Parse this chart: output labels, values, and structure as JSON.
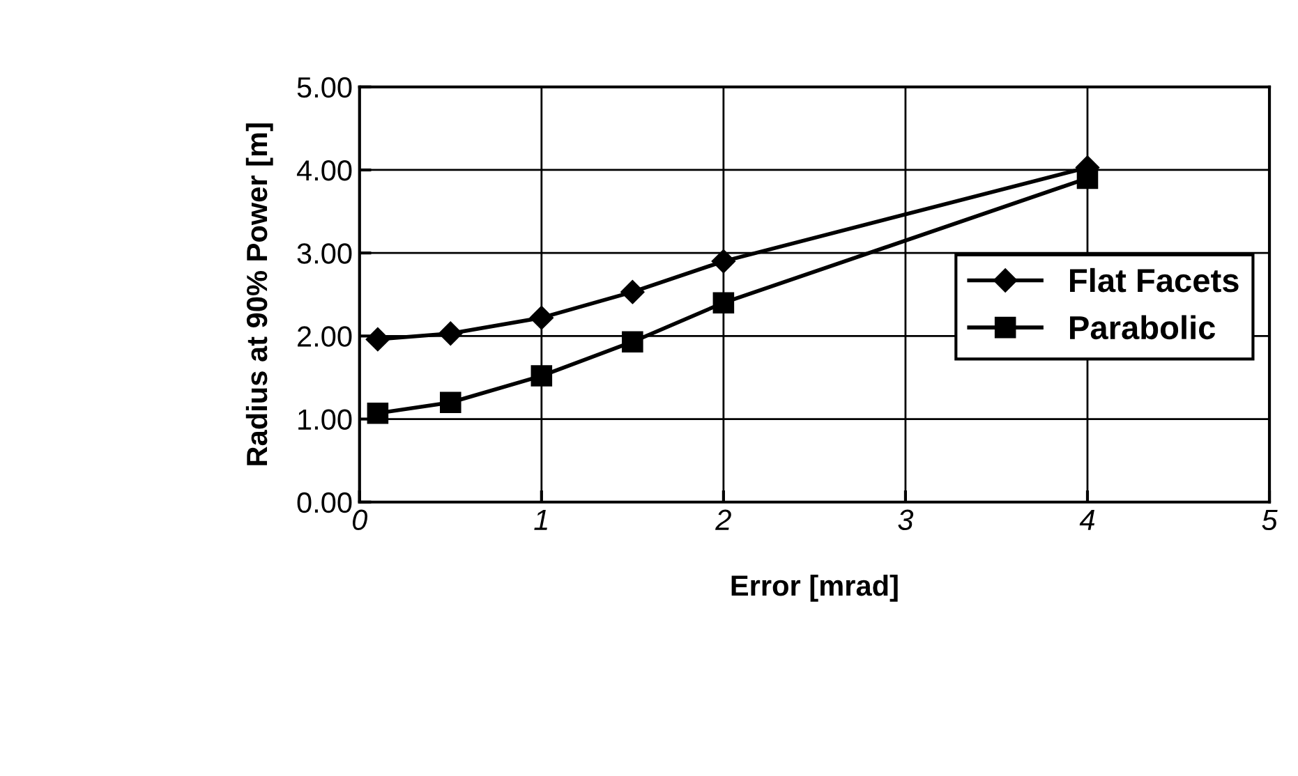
{
  "chart_data": {
    "type": "line",
    "xlabel": "Error [mrad]",
    "ylabel": "Radius at 90% Power [m]",
    "xlim": [
      0,
      5
    ],
    "xticks": [
      0,
      1,
      2,
      3,
      4,
      5
    ],
    "ylim": [
      0,
      5
    ],
    "yticks": [
      {
        "value": 0,
        "label": "0.00"
      },
      {
        "value": 1,
        "label": "1.00"
      },
      {
        "value": 2,
        "label": "2.00"
      },
      {
        "value": 3,
        "label": "3.00"
      },
      {
        "value": 4,
        "label": "4.00"
      },
      {
        "value": 5,
        "label": "5.00"
      }
    ],
    "x": [
      0.1,
      0.5,
      1,
      1.5,
      2,
      4
    ],
    "series": [
      {
        "name": "Flat Facets",
        "color": "#000000",
        "marker": "diamond",
        "values": [
          1.96,
          2.03,
          2.22,
          2.53,
          2.9,
          4.03
        ]
      },
      {
        "name": "Parabolic",
        "color": "#000000",
        "marker": "square",
        "values": [
          1.07,
          1.2,
          1.52,
          1.93,
          2.4,
          3.9
        ]
      }
    ],
    "grid": true,
    "legend": "right",
    "line_style": "solid"
  }
}
